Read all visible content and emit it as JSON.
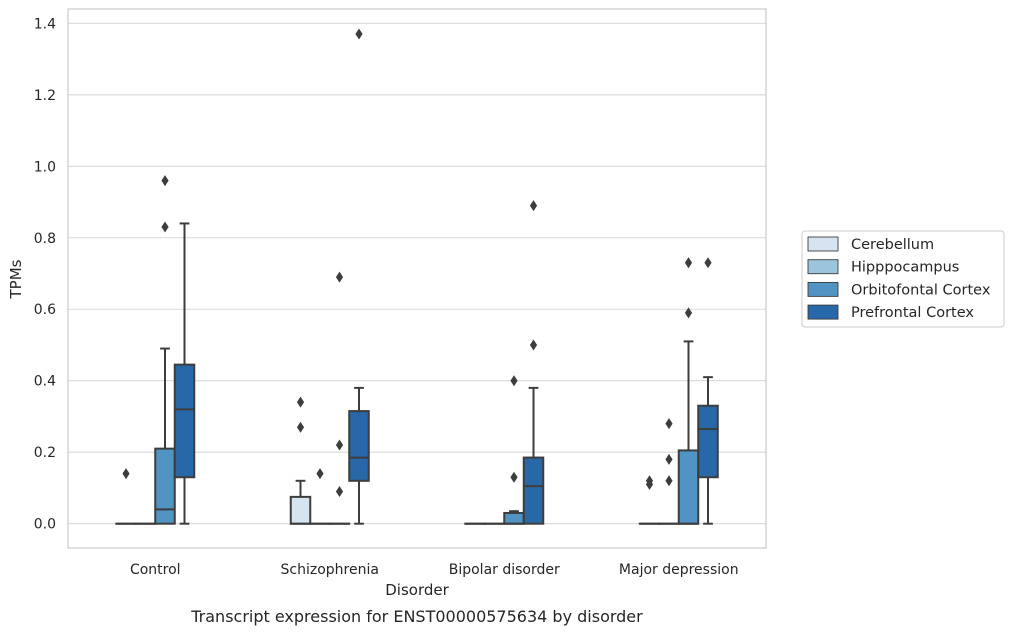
{
  "chart_data": {
    "type": "box",
    "xlabel": "Disorder",
    "ylabel": "TPMs",
    "caption": "Transcript expression for ENST00000575634 by disorder",
    "ylim": [
      -0.068,
      1.44
    ],
    "yticks": [
      "0.0",
      "0.2",
      "0.4",
      "0.6",
      "0.8",
      "1.0",
      "1.2",
      "1.4"
    ],
    "grid": true,
    "legend_position": "right",
    "categories": [
      "Control",
      "Schizophrenia",
      "Bipolar disorder",
      "Major depression"
    ],
    "series": [
      {
        "name": "Cerebellum",
        "color": "#d6e4f2",
        "boxes": [
          {
            "q1": 0,
            "median": 0,
            "q3": 0,
            "whisker_low": 0,
            "whisker_high": 0,
            "outliers": [
              0.14
            ]
          },
          {
            "q1": 0,
            "median": 0,
            "q3": 0.075,
            "whisker_low": 0,
            "whisker_high": 0.12,
            "outliers": [
              0.34,
              0.27
            ]
          },
          {
            "q1": 0,
            "median": 0,
            "q3": 0,
            "whisker_low": 0,
            "whisker_high": 0,
            "outliers": []
          },
          {
            "q1": 0,
            "median": 0,
            "q3": 0,
            "whisker_low": 0,
            "whisker_high": 0,
            "outliers": [
              0.12,
              0.11
            ]
          }
        ]
      },
      {
        "name": "Hipppocampus",
        "color": "#9bc4dd",
        "boxes": [
          {
            "q1": 0,
            "median": 0,
            "q3": 0,
            "whisker_low": 0,
            "whisker_high": 0,
            "outliers": []
          },
          {
            "q1": 0,
            "median": 0,
            "q3": 0,
            "whisker_low": 0,
            "whisker_high": 0,
            "outliers": [
              0.14
            ]
          },
          {
            "q1": 0,
            "median": 0,
            "q3": 0,
            "whisker_low": 0,
            "whisker_high": 0,
            "outliers": []
          },
          {
            "q1": 0,
            "median": 0,
            "q3": 0,
            "whisker_low": 0,
            "whisker_high": 0,
            "outliers": [
              0.28,
              0.18,
              0.12
            ]
          }
        ]
      },
      {
        "name": "Orbitofontal Cortex",
        "color": "#5193c3",
        "boxes": [
          {
            "q1": 0,
            "median": 0.04,
            "q3": 0.21,
            "whisker_low": 0,
            "whisker_high": 0.49,
            "outliers": [
              0.96,
              0.83
            ]
          },
          {
            "q1": 0,
            "median": 0,
            "q3": 0,
            "whisker_low": 0,
            "whisker_high": 0,
            "outliers": [
              0.69,
              0.22,
              0.09
            ]
          },
          {
            "q1": 0,
            "median": 0,
            "q3": 0.03,
            "whisker_low": 0,
            "whisker_high": 0.035,
            "outliers": [
              0.4,
              0.13
            ]
          },
          {
            "q1": 0,
            "median": 0,
            "q3": 0.205,
            "whisker_low": 0,
            "whisker_high": 0.51,
            "outliers": [
              0.73,
              0.59
            ]
          }
        ]
      },
      {
        "name": "Prefrontal Cortex",
        "color": "#2868a8",
        "boxes": [
          {
            "q1": 0.13,
            "median": 0.32,
            "q3": 0.445,
            "whisker_low": 0,
            "whisker_high": 0.84,
            "outliers": []
          },
          {
            "q1": 0.12,
            "median": 0.185,
            "q3": 0.315,
            "whisker_low": 0,
            "whisker_high": 0.38,
            "outliers": [
              1.37
            ]
          },
          {
            "q1": 0,
            "median": 0.105,
            "q3": 0.185,
            "whisker_low": 0,
            "whisker_high": 0.38,
            "outliers": [
              0.89,
              0.5
            ]
          },
          {
            "q1": 0.13,
            "median": 0.265,
            "q3": 0.33,
            "whisker_low": 0,
            "whisker_high": 0.41,
            "outliers": [
              0.73
            ]
          }
        ]
      }
    ]
  }
}
